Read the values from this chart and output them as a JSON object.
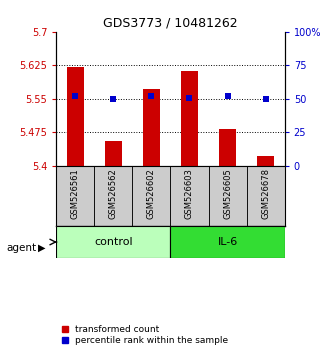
{
  "title": "GDS3773 / 10481262",
  "samples": [
    "GSM526561",
    "GSM526562",
    "GSM526602",
    "GSM526603",
    "GSM526605",
    "GSM526678"
  ],
  "bar_values": [
    5.622,
    5.455,
    5.572,
    5.612,
    5.482,
    5.422
  ],
  "percentile_values": [
    52,
    50,
    52,
    51,
    52,
    50
  ],
  "ylim_left": [
    5.4,
    5.7
  ],
  "ylim_right": [
    0,
    100
  ],
  "yticks_left": [
    5.4,
    5.475,
    5.55,
    5.625,
    5.7
  ],
  "yticks_left_labels": [
    "5.4",
    "5.475",
    "5.55",
    "5.625",
    "5.7"
  ],
  "yticks_right": [
    0,
    25,
    50,
    75,
    100
  ],
  "yticks_right_labels": [
    "0",
    "25",
    "50",
    "75",
    "100%"
  ],
  "hlines": [
    5.625,
    5.55,
    5.475
  ],
  "bar_color": "#cc0000",
  "dot_color": "#0000cc",
  "group_labels": [
    "control",
    "IL-6"
  ],
  "group_ranges": [
    [
      0,
      3
    ],
    [
      3,
      6
    ]
  ],
  "group_color_light": "#bbffbb",
  "group_color_dark": "#33dd33",
  "sample_box_color": "#cccccc",
  "agent_label": "agent",
  "legend_bar_label": "transformed count",
  "legend_dot_label": "percentile rank within the sample",
  "bar_width": 0.45,
  "title_fontsize": 9,
  "tick_fontsize": 7,
  "sample_fontsize": 6,
  "group_fontsize": 8,
  "legend_fontsize": 6.5
}
